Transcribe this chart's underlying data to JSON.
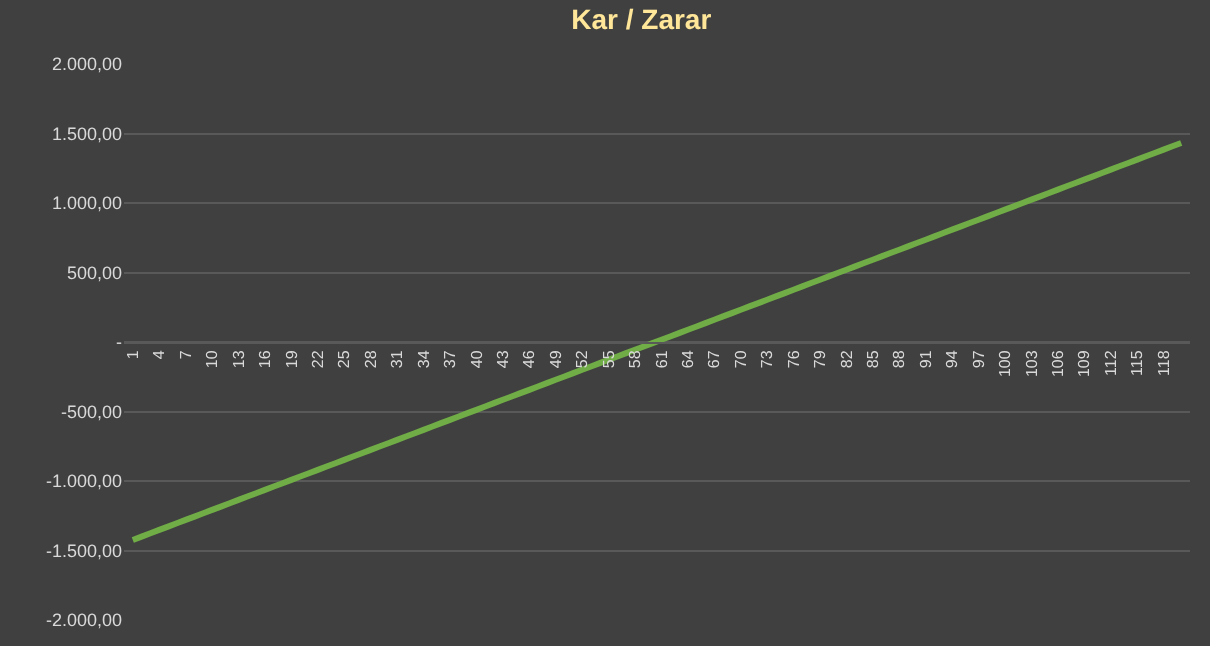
{
  "chart_data": {
    "type": "line",
    "title": "Kar / Zarar",
    "categories": [
      "1",
      null,
      null,
      "4",
      null,
      null,
      "7",
      null,
      null,
      "10",
      null,
      null,
      "13",
      null,
      null,
      "16",
      null,
      null,
      "19",
      null,
      null,
      "22",
      null,
      null,
      "25",
      null,
      null,
      "28",
      null,
      null,
      "31",
      null,
      null,
      "34",
      null,
      null,
      "37",
      null,
      null,
      "40",
      null,
      null,
      "43",
      null,
      null,
      "46",
      null,
      null,
      "49",
      null,
      null,
      "52",
      null,
      null,
      "55",
      null,
      null,
      "58",
      null,
      null,
      "61",
      null,
      null,
      "64",
      null,
      null,
      "67",
      null,
      null,
      "70",
      null,
      null,
      "73",
      null,
      null,
      "76",
      null,
      null,
      "79",
      null,
      null,
      "82",
      null,
      null,
      "85",
      null,
      null,
      "88",
      null,
      null,
      "91",
      null,
      null,
      "94",
      null,
      null,
      "97",
      null,
      null,
      "100",
      null,
      null,
      "103",
      null,
      null,
      "106",
      null,
      null,
      "109",
      null,
      null,
      "112",
      null,
      null,
      "115",
      null,
      null,
      "118",
      null,
      null
    ],
    "series": [
      {
        "color": "#70ad47",
        "values": [
          -1424,
          -1400,
          -1376,
          -1352,
          -1328,
          -1304,
          -1280,
          -1256,
          -1232,
          -1208,
          -1184,
          -1160,
          -1136,
          -1112,
          -1088,
          -1064,
          -1040,
          -1016,
          -992,
          -968,
          -944,
          -920,
          -896,
          -872,
          -848,
          -824,
          -800,
          -776,
          -752,
          -728,
          -704,
          -680,
          -656,
          -632,
          -608,
          -584,
          -560,
          -536,
          -512,
          -488,
          -464,
          -440,
          -416,
          -392,
          -368,
          -344,
          -320,
          -296,
          -272,
          -248,
          -224,
          -200,
          -176,
          -152,
          -128,
          -104,
          -80,
          -56,
          -32,
          -8,
          16,
          40,
          64,
          88,
          112,
          136,
          160,
          184,
          208,
          232,
          256,
          280,
          304,
          328,
          352,
          376,
          400,
          424,
          448,
          472,
          496,
          520,
          544,
          568,
          592,
          616,
          640,
          664,
          688,
          712,
          736,
          760,
          784,
          808,
          832,
          856,
          880,
          904,
          928,
          952,
          976,
          1000,
          1024,
          1048,
          1072,
          1096,
          1120,
          1144,
          1168,
          1192,
          1216,
          1240,
          1264,
          1288,
          1312,
          1336,
          1360,
          1384,
          1408,
          1432
        ]
      }
    ],
    "ylim": [
      -2000,
      2000
    ],
    "yticks": [
      {
        "value": -2000,
        "label": "-2.000,00"
      },
      {
        "value": -1500,
        "label": "-1.500,00"
      },
      {
        "value": -1000,
        "label": "-1.000,00"
      },
      {
        "value": -500,
        "label": "-500,00"
      },
      {
        "value": 0,
        "label": "-"
      },
      {
        "value": 500,
        "label": "500,00"
      },
      {
        "value": 1000,
        "label": "1.000,00"
      },
      {
        "value": 1500,
        "label": "1.500,00"
      },
      {
        "value": 2000,
        "label": "2.000,00"
      }
    ],
    "grid": "y",
    "marker": "none",
    "line_style": "solid"
  }
}
